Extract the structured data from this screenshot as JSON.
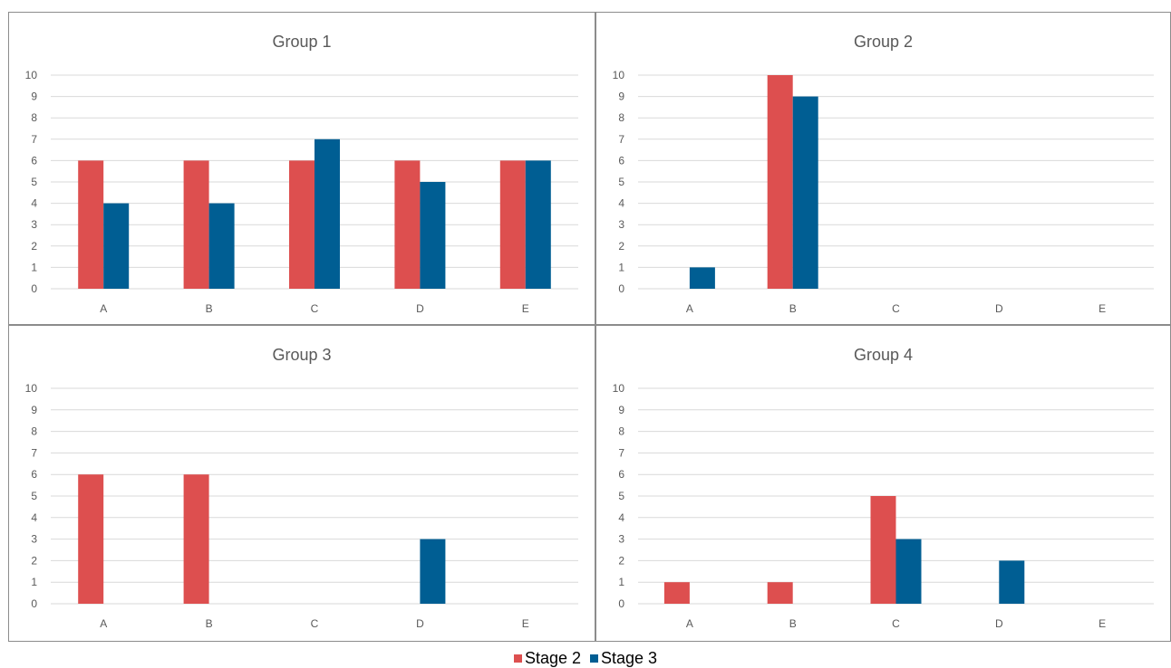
{
  "chart_data": [
    {
      "type": "bar",
      "title": "Group 1",
      "categories": [
        "A",
        "B",
        "C",
        "D",
        "E"
      ],
      "series": [
        {
          "name": "Stage 2",
          "values": [
            6,
            6,
            6,
            6,
            6
          ]
        },
        {
          "name": "Stage 3",
          "values": [
            4,
            4,
            7,
            5,
            6
          ]
        }
      ],
      "yticks": [
        "0",
        "1",
        "2",
        "3",
        "4",
        "5",
        "6",
        "7",
        "8",
        "9",
        "10"
      ],
      "ylim": [
        0,
        10
      ],
      "grid": true
    },
    {
      "type": "bar",
      "title": "Group 2",
      "categories": [
        "A",
        "B",
        "C",
        "D",
        "E"
      ],
      "series": [
        {
          "name": "Stage 2",
          "values": [
            0,
            10,
            0,
            0,
            0
          ]
        },
        {
          "name": "Stage 3",
          "values": [
            1,
            9,
            0,
            0,
            0
          ]
        }
      ],
      "yticks": [
        "0",
        "1",
        "2",
        "3",
        "4",
        "5",
        "6",
        "7",
        "8",
        "9",
        "10"
      ],
      "ylim": [
        0,
        10
      ],
      "grid": true
    },
    {
      "type": "bar",
      "title": "Group 3",
      "categories": [
        "A",
        "B",
        "C",
        "D",
        "E"
      ],
      "series": [
        {
          "name": "Stage 2",
          "values": [
            6,
            6,
            0,
            0,
            0
          ]
        },
        {
          "name": "Stage 3",
          "values": [
            0,
            0,
            0,
            3,
            0
          ]
        }
      ],
      "yticks": [
        "0",
        "1",
        "2",
        "3",
        "4",
        "5",
        "6",
        "7",
        "8",
        "9",
        "10"
      ],
      "ylim": [
        0,
        10
      ],
      "grid": true
    },
    {
      "type": "bar",
      "title": "Group 4",
      "categories": [
        "A",
        "B",
        "C",
        "D",
        "E"
      ],
      "series": [
        {
          "name": "Stage 2",
          "values": [
            1,
            1,
            5,
            0,
            0
          ]
        },
        {
          "name": "Stage 3",
          "values": [
            0,
            0,
            3,
            2,
            0
          ]
        }
      ],
      "yticks": [
        "0",
        "1",
        "2",
        "3",
        "4",
        "5",
        "6",
        "7",
        "8",
        "9",
        "10"
      ],
      "ylim": [
        0,
        10
      ],
      "grid": true
    }
  ],
  "legend": {
    "placement": "bottom",
    "items": [
      {
        "label": "Stage 2",
        "color": "#dd4f4f"
      },
      {
        "label": "Stage 3",
        "color": "#005e93"
      }
    ]
  },
  "colors": {
    "stage2": "#dd4f4f",
    "stage3": "#005e93",
    "grid": "#d9d9d9",
    "axis_text": "#595959"
  }
}
